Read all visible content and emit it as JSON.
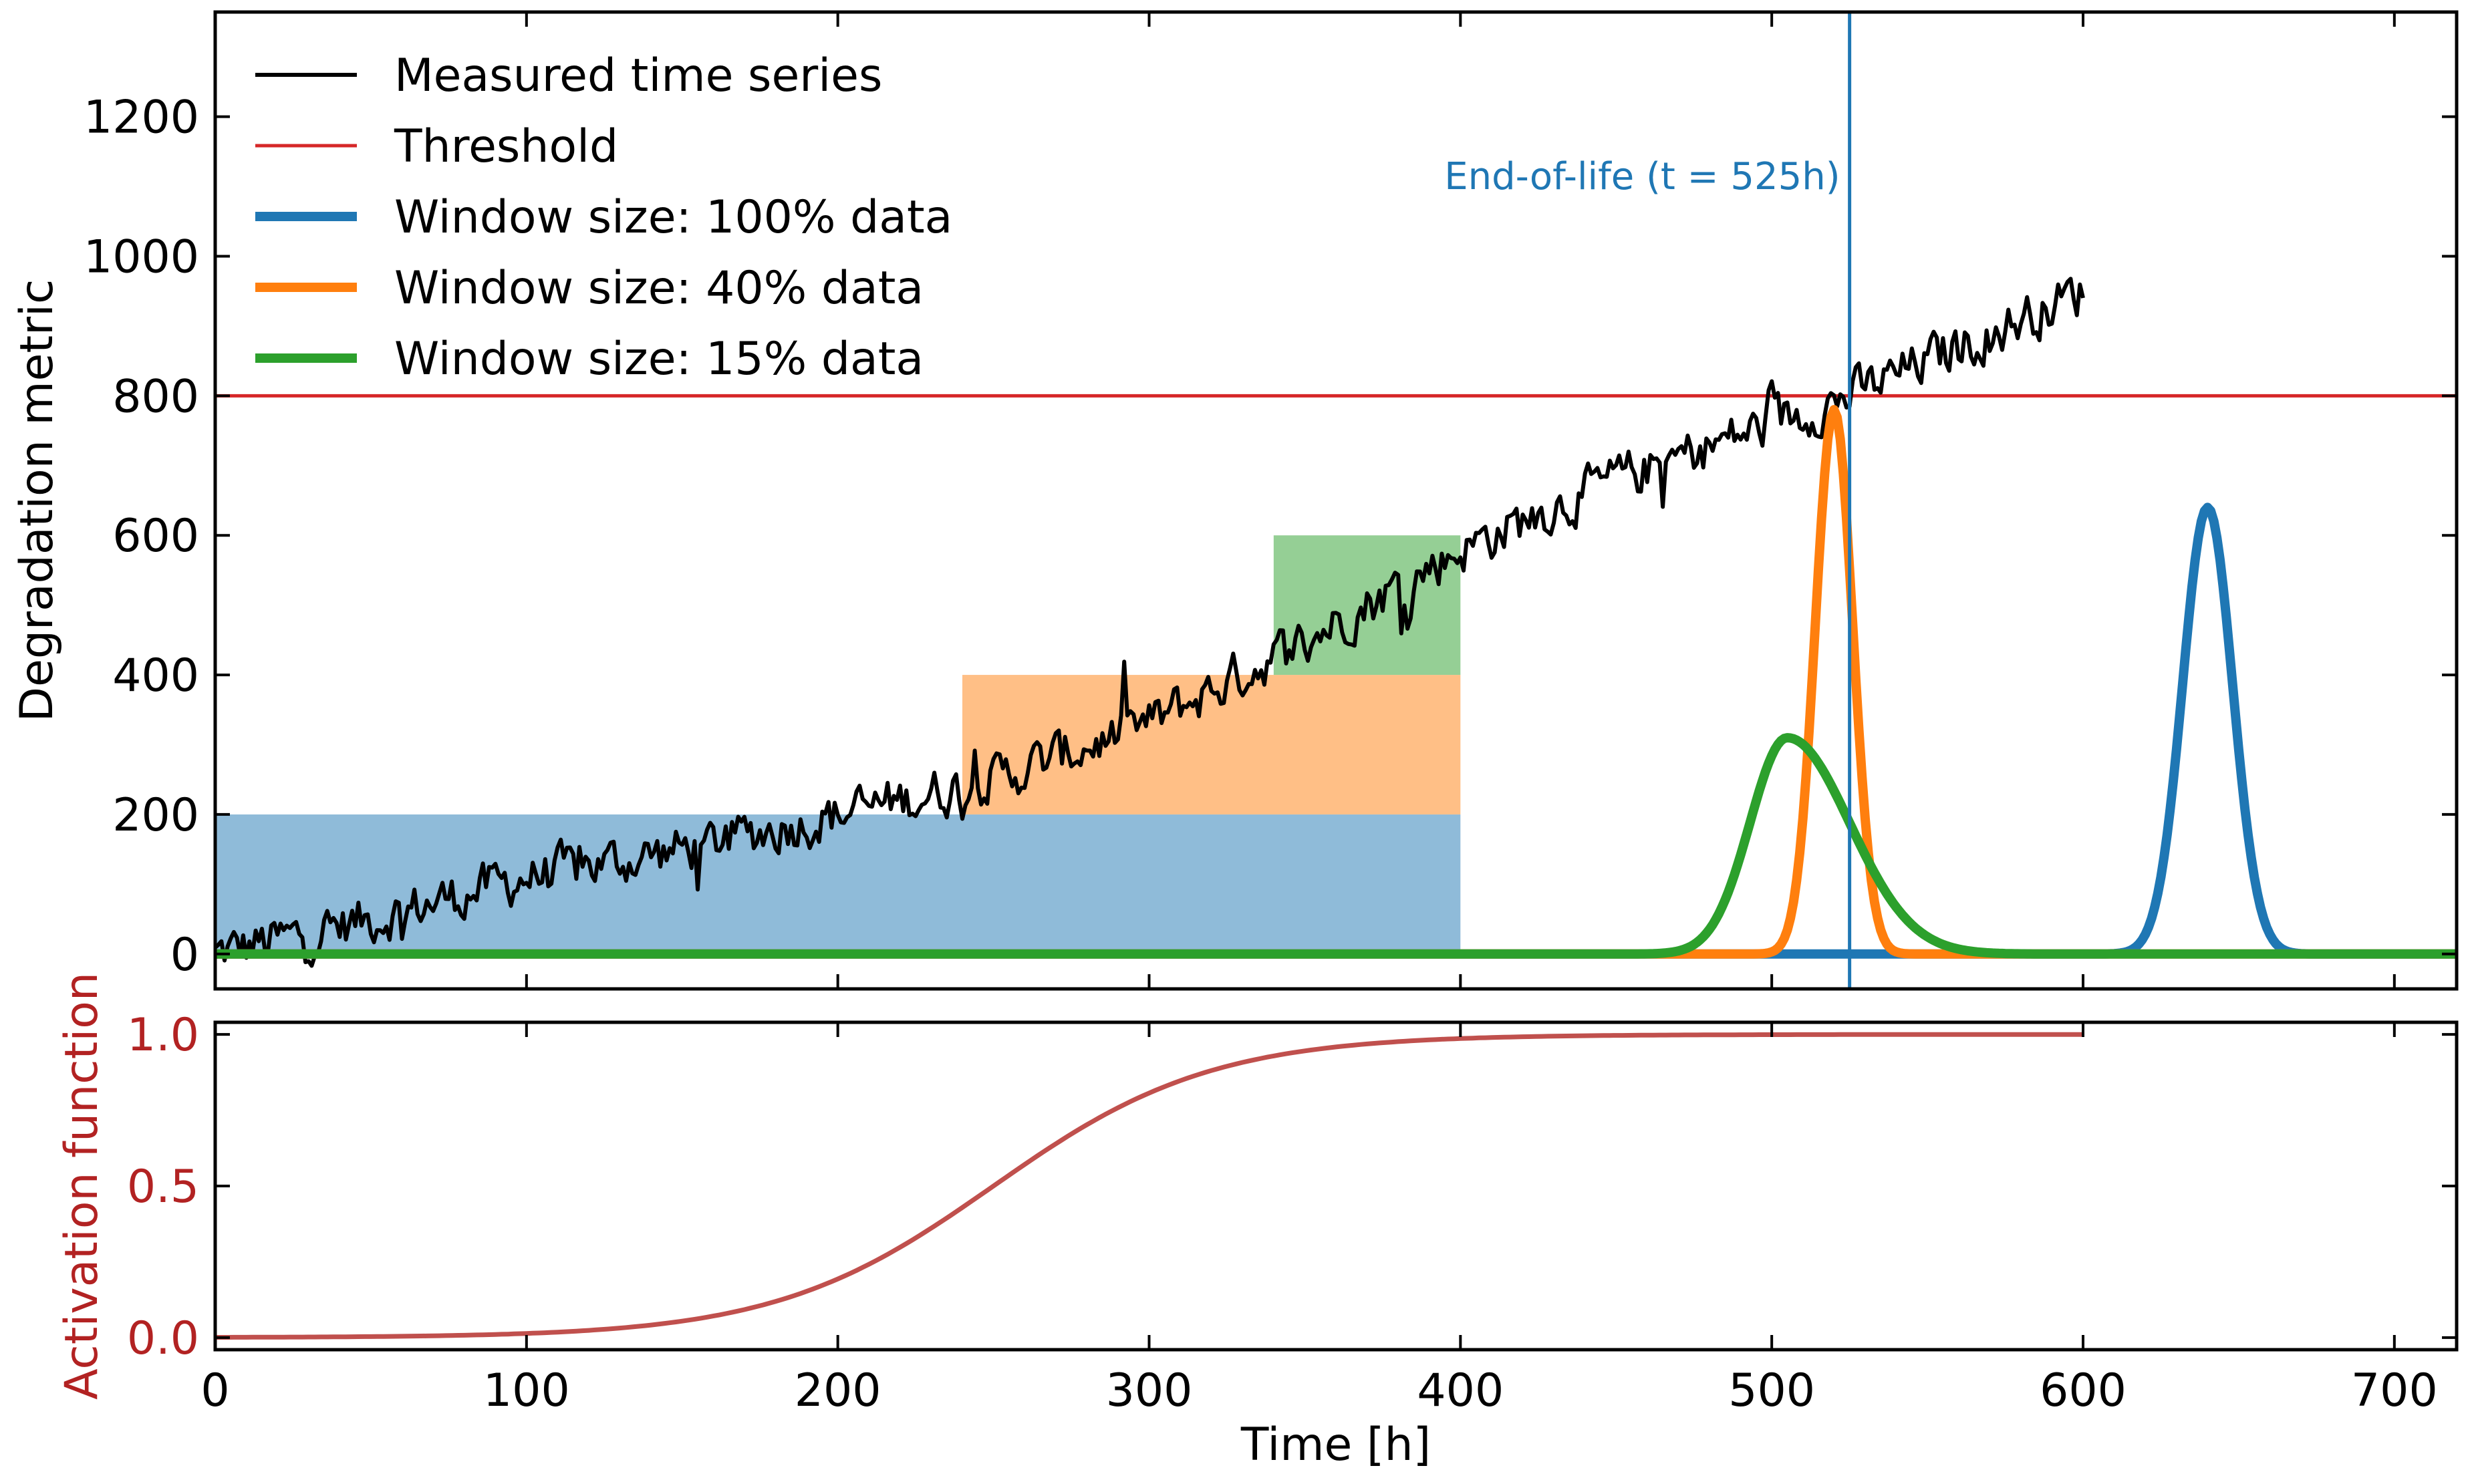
{
  "chart_data": [
    {
      "type": "line",
      "panel": "top",
      "ylabel": "Degradation metric",
      "xlim": [
        0,
        720
      ],
      "ylim": [
        -50,
        1350
      ],
      "yticks": [
        0,
        200,
        400,
        600,
        800,
        1000,
        1200
      ],
      "threshold": {
        "label": "Threshold",
        "value": 800,
        "color": "#d62728"
      },
      "end_of_life": {
        "label": "End-of-life (t = 525h)",
        "value": 525,
        "color": "#1f77b4"
      },
      "measured": {
        "name": "Measured time series",
        "color": "#000000",
        "x": [
          0,
          50,
          100,
          150,
          200,
          250,
          300,
          350,
          400,
          450,
          500,
          525,
          550,
          600
        ],
        "y": [
          0,
          50,
          110,
          150,
          200,
          250,
          330,
          450,
          580,
          680,
          760,
          800,
          850,
          950
        ],
        "noise_amplitude": 30,
        "sample_interval": 1
      },
      "windows": [
        {
          "name": "Window size: 100% data",
          "color": "#1f77b4",
          "x_range": [
            0,
            400
          ],
          "y_range": [
            0,
            200
          ],
          "pdf": {
            "mean": 640,
            "sd": 8,
            "peak": 640
          }
        },
        {
          "name": "Window size: 40% data",
          "color": "#ff7f0e",
          "x_range": [
            240,
            400
          ],
          "y_range": [
            200,
            400
          ],
          "pdf": {
            "mean": 520,
            "sd": 6,
            "peak": 780
          }
        },
        {
          "name": "Window size: 15% data",
          "color": "#2ca02c",
          "x_range": [
            340,
            400
          ],
          "y_range": [
            400,
            600
          ],
          "pdf": {
            "mean": 505,
            "sd_left": 12,
            "sd_right": 20,
            "peak": 310
          }
        }
      ]
    },
    {
      "type": "line",
      "panel": "bottom",
      "xlabel": "Time [h]",
      "ylabel": "Activation function",
      "xlim": [
        0,
        720
      ],
      "ylim": [
        -0.04,
        1.04
      ],
      "xticks": [
        0,
        100,
        200,
        300,
        400,
        500,
        600,
        700
      ],
      "yticks": [
        "0.0",
        "0.5",
        "1.0"
      ],
      "series": [
        {
          "name": "Activation function",
          "color": "#c0504d",
          "sigmoid_center": 250,
          "sigmoid_scale": 35,
          "x_range": [
            0,
            600
          ]
        }
      ]
    }
  ]
}
